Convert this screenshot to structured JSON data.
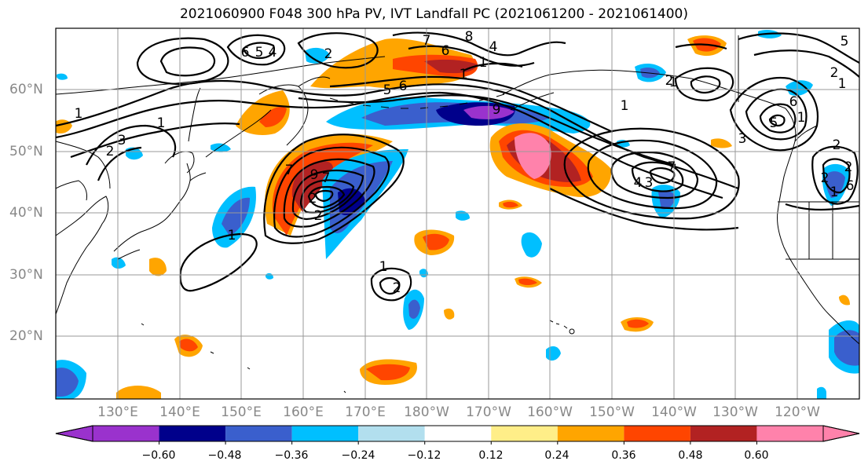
{
  "title": "2021060900 F048 300 hPa PV, IVT Landfall PC (2021061200 - 2021061400)",
  "lon_labels": [
    "130°E",
    "140°E",
    "150°E",
    "160°E",
    "170°E",
    "180°W",
    "170°W",
    "160°W",
    "150°W",
    "140°W",
    "130°W",
    "120°W"
  ],
  "lat_labels": [
    "60°N",
    "50°N",
    "40°N",
    "30°N",
    "20°N"
  ],
  "colorbar": {
    "ticks": [
      "−0.60",
      "−0.48",
      "−0.36",
      "−0.24",
      "−0.12",
      "0.12",
      "0.24",
      "0.36",
      "0.48",
      "0.60"
    ],
    "colors": [
      "#9a32cd",
      "#00008b",
      "#3a5fcd",
      "#00bfff",
      "#b2dfee",
      "#ffffff",
      "#ffee88",
      "#ffa500",
      "#ff4500",
      "#b22222",
      "#ff82ab"
    ]
  },
  "contour_labels": [
    "1",
    "3",
    "6",
    "5",
    "4",
    "2",
    "7",
    "8",
    "6",
    "5",
    "6",
    "1",
    "7",
    "9",
    "2",
    "1",
    "1",
    "4",
    "1",
    "9",
    "1",
    "2",
    "1",
    "4",
    "3",
    "2",
    "7",
    "1",
    "2",
    "1",
    "2",
    "5",
    "6",
    "5",
    "3",
    "2",
    "1",
    "2",
    "6",
    "2",
    "7",
    "2",
    "1"
  ]
}
